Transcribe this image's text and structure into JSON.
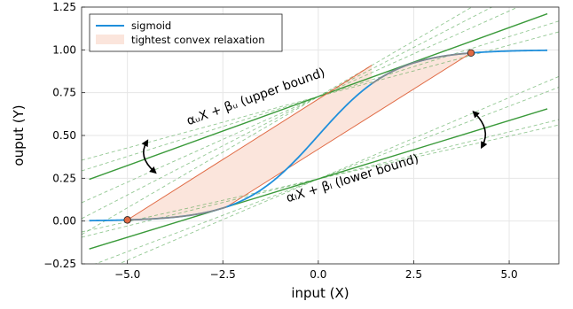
{
  "chart_data": {
    "type": "line",
    "xlabel": "input (X)",
    "ylabel": "ouput (Y)",
    "xlim": [
      -6.2,
      6.3
    ],
    "ylim": [
      -0.25,
      1.25
    ],
    "xticks": [
      -5.0,
      -2.5,
      0.0,
      2.5,
      5.0
    ],
    "xtick_labels": [
      "−5.0",
      "−2.5",
      "0.0",
      "2.5",
      "5.0"
    ],
    "yticks": [
      -0.25,
      0.0,
      0.25,
      0.5,
      0.75,
      1.0,
      1.25
    ],
    "ytick_labels": [
      "−0.25",
      "0.00",
      "0.25",
      "0.50",
      "0.75",
      "1.00",
      "1.25"
    ],
    "grid": true,
    "legend": {
      "placement": "top-left",
      "entries": [
        {
          "label": "sigmoid",
          "color": "#1f8fdb",
          "kind": "line"
        },
        {
          "label": "tightest convex relaxation",
          "color": "#fbe5dc",
          "kind": "patch"
        }
      ]
    },
    "sigmoid": {
      "x_range": [
        -6.0,
        6.0
      ],
      "color": "#1f8fdb"
    },
    "relaxation": {
      "fill_color": "#fbe5dc",
      "edge_color": "#e06a44",
      "tangent_color": "#888888",
      "upper_segment": [
        [
          -5.0,
          0.0067
        ],
        [
          1.4,
          0.91
        ]
      ],
      "lower_segment": [
        [
          -2.4,
          0.083
        ],
        [
          4.0,
          0.982
        ]
      ]
    },
    "endpoints": {
      "color": "#e06a44",
      "points": [
        [
          -5.0,
          0.0067
        ],
        [
          4.0,
          0.982
        ]
      ]
    },
    "upper_bound_lines": {
      "color": "#3a9a3a",
      "solid": {
        "slope": 0.0806,
        "intercept": 0.7272
      },
      "dashed_slopes": [
        0.06,
        0.07,
        0.1,
        0.115,
        0.13
      ],
      "pivot": [
        0,
        0.7272
      ]
    },
    "lower_bound_lines": {
      "color": "#3a9a3a",
      "solid": {
        "slope": 0.0682,
        "intercept": 0.2462
      },
      "dashed_slopes": [
        0.05,
        0.055,
        0.085,
        0.095
      ],
      "pivot": [
        0,
        0.2462
      ]
    },
    "annotations": [
      {
        "text": "αᵤX + βᵤ (upper bound)",
        "x": -3.4,
        "y": 0.56,
        "slope": 0.0806
      },
      {
        "text": "αₗX + βₗ (lower bound)",
        "x": -0.8,
        "y": 0.11,
        "slope": 0.0682
      }
    ],
    "arrows": [
      {
        "from": [
          -4.5,
          0.46
        ],
        "to": [
          -4.3,
          0.29
        ],
        "curve": "left"
      },
      {
        "from": [
          4.1,
          0.63
        ],
        "to": [
          4.3,
          0.44
        ],
        "curve": "right"
      }
    ]
  }
}
